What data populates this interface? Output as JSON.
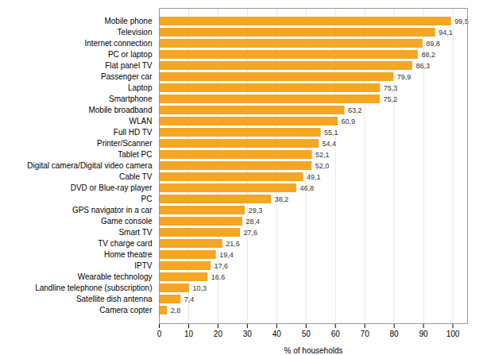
{
  "chart_data": {
    "type": "bar",
    "orientation": "horizontal",
    "xlabel": "% of households",
    "categories": [
      "Camera copter",
      "Satellite dish antenna",
      "Landline telephone (subscription)",
      "Wearable technology",
      "IPTV",
      "Home theatre",
      "TV charge card",
      "Smart TV",
      "Game console",
      "GPS navigator in a car",
      "PC",
      "DVD or Blue-ray player",
      "Cable TV",
      "Digital camera/Digital video camera",
      "Tablet PC",
      "Printer/Scanner",
      "Full HD TV",
      "WLAN",
      "Mobile broadband",
      "Smartphone",
      "Laptop",
      "Passenger car",
      "Flat panel TV",
      "PC or laptop",
      "Internet connection",
      "Television",
      "Mobile phone"
    ],
    "values": [
      2.8,
      7.4,
      10.3,
      16.6,
      17.6,
      19.4,
      21.6,
      27.6,
      28.4,
      29.3,
      38.2,
      46.8,
      49.1,
      52.0,
      52.1,
      54.4,
      55.1,
      60.9,
      63.2,
      75.2,
      75.3,
      79.9,
      86.3,
      88.2,
      89.8,
      94.1,
      99.5
    ],
    "value_labels": [
      "2,8",
      "7,4",
      "10,3",
      "16,6",
      "17,6",
      "19,4",
      "21,6",
      "27,6",
      "28,4",
      "29,3",
      "38,2",
      "46,8",
      "49,1",
      "52,0",
      "52,1",
      "54,4",
      "55,1",
      "60,9",
      "63,2",
      "75,2",
      "75,3",
      "79,9",
      "86,3",
      "88,2",
      "89,8",
      "94,1",
      "99,5"
    ],
    "data_labels": true,
    "color": "#f5a623",
    "xlim": [
      0,
      105
    ],
    "xticks": [
      0,
      10,
      20,
      30,
      40,
      50,
      60,
      70,
      80,
      90,
      100
    ],
    "grid": true
  }
}
